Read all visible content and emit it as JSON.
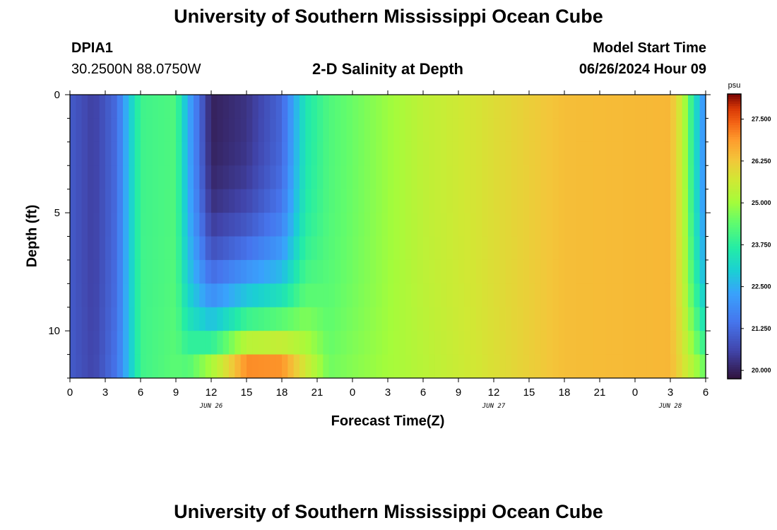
{
  "page": {
    "title": "University of Southern Mississippi Ocean Cube",
    "bottom_title": "University of Southern Mississippi Ocean Cube",
    "station_id": "DPIA1",
    "station_coords": "30.2500N  88.0750W",
    "subtitle": "2-D Salinity at Depth",
    "model_start_label": "Model Start Time",
    "model_start_value": "06/26/2024 Hour 09"
  },
  "chart_data": {
    "type": "heatmap",
    "title": "2-D Salinity at Depth",
    "xlabel": "Forecast Time(Z)",
    "ylabel": "Depth (ft)",
    "x_range_hours": [
      0,
      54
    ],
    "y_range_ft": [
      0,
      12
    ],
    "x_tick_labels": [
      "0",
      "3",
      "6",
      "9",
      "12",
      "15",
      "18",
      "21",
      "0",
      "3",
      "6",
      "9",
      "12",
      "15",
      "18",
      "21",
      "0",
      "3",
      "6"
    ],
    "y_tick_labels": [
      "0",
      "5",
      "10"
    ],
    "y_tick_values": [
      0,
      5,
      10
    ],
    "date_labels": [
      {
        "text": "JUN 26",
        "hour": 12
      },
      {
        "text": "JUN 27",
        "hour": 36
      },
      {
        "text": "JUN 28",
        "hour": 51
      }
    ],
    "colorbar": {
      "unit": "psu",
      "min": 19.75,
      "max": 28.25,
      "tick_labels": [
        "20.000",
        "21.250",
        "22.500",
        "23.750",
        "25.000",
        "26.250",
        "27.500"
      ],
      "tick_values": [
        20.0,
        21.25,
        22.5,
        23.75,
        25.0,
        26.25,
        27.5
      ]
    },
    "depth_levels_ft": [
      0,
      1,
      2,
      3,
      4,
      5,
      6,
      7,
      8,
      9,
      10,
      11,
      12
    ],
    "surface_salinity_psu": [
      {
        "hour": 0,
        "value": 21.0
      },
      {
        "hour": 2,
        "value": 20.5
      },
      {
        "hour": 4,
        "value": 21.3
      },
      {
        "hour": 5,
        "value": 22.8
      },
      {
        "hour": 6,
        "value": 24.0
      },
      {
        "hour": 9,
        "value": 24.2
      },
      {
        "hour": 10,
        "value": 22.5
      },
      {
        "hour": 12,
        "value": 20.0
      },
      {
        "hour": 15,
        "value": 20.3
      },
      {
        "hour": 18,
        "value": 21.2
      },
      {
        "hour": 20,
        "value": 23.5
      },
      {
        "hour": 22,
        "value": 24.2
      },
      {
        "hour": 26,
        "value": 24.8
      },
      {
        "hour": 30,
        "value": 25.4
      },
      {
        "hour": 36,
        "value": 25.9
      },
      {
        "hour": 42,
        "value": 26.4
      },
      {
        "hour": 51,
        "value": 26.5
      },
      {
        "hour": 52,
        "value": 25.5
      },
      {
        "hour": 53,
        "value": 23.5
      },
      {
        "hour": 54,
        "value": 21.8
      }
    ],
    "bottom_salinity_psu": [
      {
        "hour": 0,
        "value": 21.0
      },
      {
        "hour": 2,
        "value": 20.6
      },
      {
        "hour": 4,
        "value": 21.5
      },
      {
        "hour": 6,
        "value": 24.0
      },
      {
        "hour": 10,
        "value": 24.5
      },
      {
        "hour": 13,
        "value": 26.5
      },
      {
        "hour": 15,
        "value": 28.0
      },
      {
        "hour": 18,
        "value": 27.8
      },
      {
        "hour": 20,
        "value": 26.0
      },
      {
        "hour": 22,
        "value": 24.6
      },
      {
        "hour": 30,
        "value": 25.3
      },
      {
        "hour": 42,
        "value": 26.4
      },
      {
        "hour": 51,
        "value": 26.5
      },
      {
        "hour": 54,
        "value": 24.8
      }
    ]
  }
}
